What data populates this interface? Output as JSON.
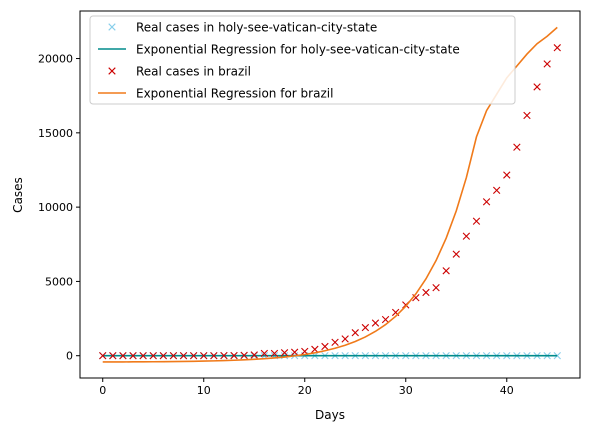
{
  "chart_data": {
    "type": "scatter",
    "title": "",
    "xlabel": "Days",
    "ylabel": "Cases",
    "xlim": [
      -2.25,
      47.25
    ],
    "ylim": [
      -1500,
      23200
    ],
    "xticks": [
      0,
      10,
      20,
      30,
      40
    ],
    "yticks": [
      0,
      5000,
      10000,
      15000,
      20000
    ],
    "grid": false,
    "legend_position": "top-left",
    "series": [
      {
        "name": "Real cases in holy-see-vatican-city-state",
        "kind": "points",
        "marker": "x",
        "color": "#87ceeb",
        "x": [
          0,
          1,
          2,
          3,
          4,
          5,
          6,
          7,
          8,
          9,
          10,
          11,
          12,
          13,
          14,
          15,
          16,
          17,
          18,
          19,
          20,
          21,
          22,
          23,
          24,
          25,
          26,
          27,
          28,
          29,
          30,
          31,
          32,
          33,
          34,
          35,
          36,
          37,
          38,
          39,
          40,
          41,
          42,
          43,
          44,
          45
        ],
        "y": [
          0,
          0,
          0,
          0,
          0,
          0,
          0,
          0,
          0,
          0,
          0,
          0,
          0,
          0,
          0,
          0,
          0,
          0,
          0,
          0,
          0,
          0,
          0,
          0,
          0,
          0,
          0,
          0,
          0,
          0,
          0,
          0,
          0,
          0,
          0,
          0,
          0,
          0,
          0,
          0,
          0,
          0,
          0,
          0,
          0,
          0
        ]
      },
      {
        "name": "Exponential Regression for holy-see-vatican-city-state",
        "kind": "line",
        "color": "#008b8b",
        "x": [
          0,
          45
        ],
        "y": [
          0,
          0
        ]
      },
      {
        "name": "Real cases in brazil",
        "kind": "points",
        "marker": "x",
        "color": "#cc0000",
        "x": [
          0,
          1,
          2,
          3,
          4,
          5,
          6,
          7,
          8,
          9,
          10,
          11,
          12,
          13,
          14,
          15,
          16,
          17,
          18,
          19,
          20,
          21,
          22,
          23,
          24,
          25,
          26,
          27,
          28,
          29,
          30,
          31,
          32,
          33,
          34,
          35,
          36,
          37,
          38,
          39,
          40,
          41,
          42,
          43,
          44,
          45
        ],
        "y": [
          0,
          0,
          0,
          0,
          0,
          0,
          0,
          0,
          0,
          0,
          0,
          2,
          8,
          13,
          25,
          52,
          151,
          151,
          200,
          234,
          291,
          428,
          621,
          904,
          1128,
          1546,
          1891,
          2201,
          2433,
          2915,
          3417,
          3904,
          4256,
          4579,
          5717,
          6836,
          8044,
          9056,
          10360,
          11130,
          12161,
          14034,
          16170,
          18092,
          19638,
          20727
        ]
      },
      {
        "name": "Exponential Regression for brazil",
        "kind": "line",
        "color": "#f07a1a",
        "x": [
          0,
          1,
          2,
          3,
          4,
          5,
          6,
          7,
          8,
          9,
          10,
          11,
          12,
          13,
          14,
          15,
          16,
          17,
          18,
          19,
          20,
          21,
          22,
          23,
          24,
          25,
          26,
          27,
          28,
          29,
          30,
          31,
          32,
          33,
          34,
          35,
          36,
          37,
          38,
          39,
          40,
          41,
          42,
          43,
          44,
          45
        ],
        "y": [
          -422,
          -420,
          -417,
          -414,
          -410,
          -406,
          -400,
          -393,
          -385,
          -375,
          -362,
          -347,
          -328,
          -305,
          -277,
          -243,
          -201,
          -150,
          -88,
          -12,
          81,
          194,
          332,
          501,
          707,
          958,
          1264,
          1638,
          2094,
          2651,
          3330,
          4159,
          5171,
          6405,
          7911,
          9749,
          11991,
          14727,
          16500,
          17600,
          18700,
          19500,
          20300,
          21000,
          21500,
          22100
        ]
      }
    ]
  }
}
